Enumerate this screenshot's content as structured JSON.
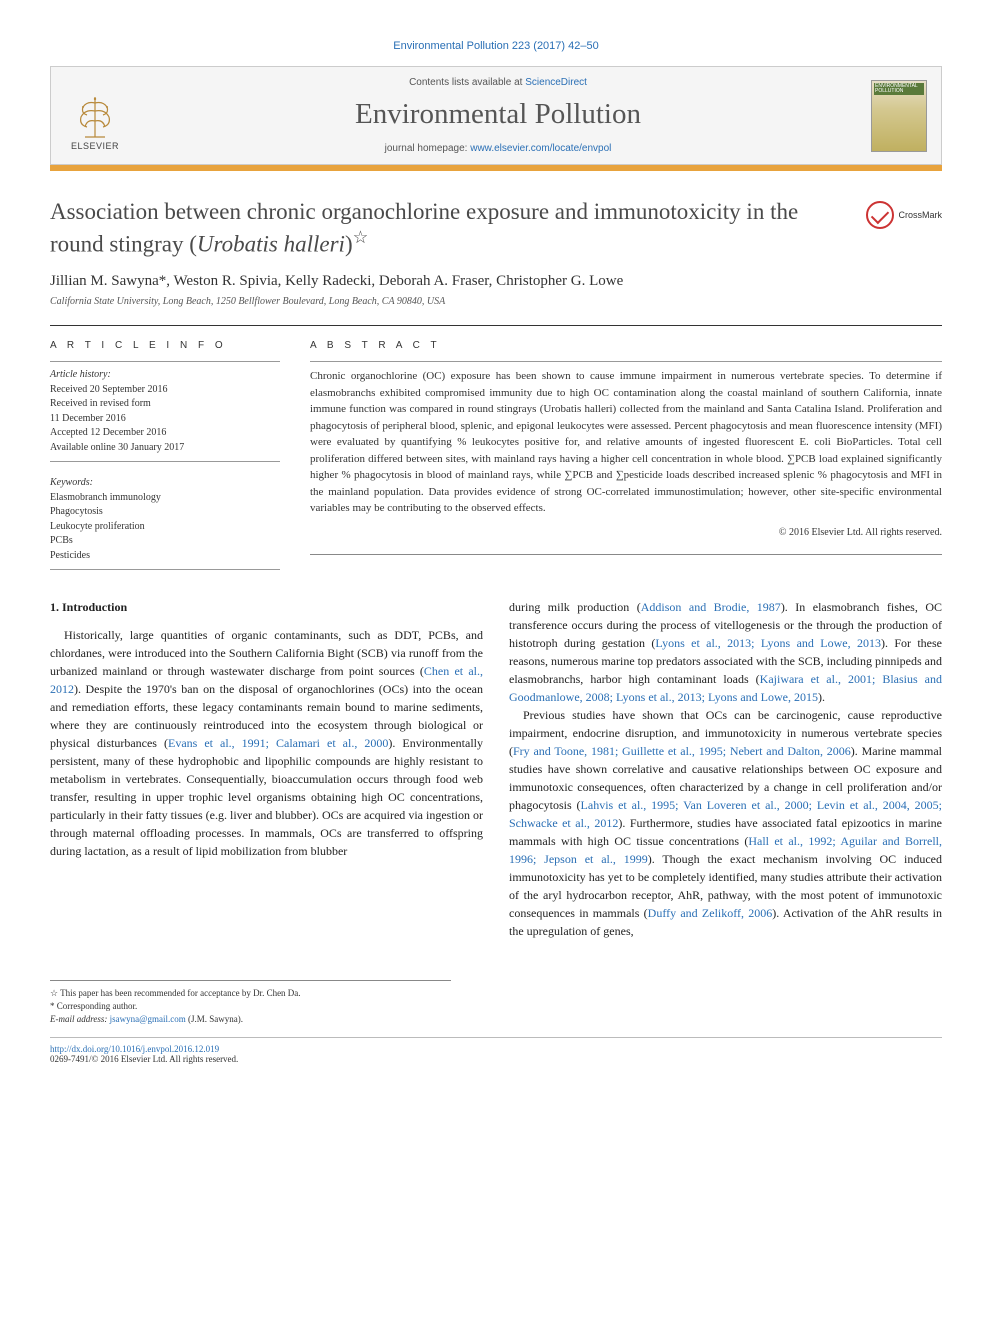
{
  "journal_ref": "Environmental Pollution 223 (2017) 42–50",
  "header": {
    "contents_prefix": "Contents lists available at ",
    "contents_link": "ScienceDirect",
    "journal_name": "Environmental Pollution",
    "homepage_prefix": "journal homepage: ",
    "homepage_link": "www.elsevier.com/locate/envpol",
    "elsevier": "ELSEVIER",
    "cover_label": "ENVIRONMENTAL POLLUTION"
  },
  "crossmark": "CrossMark",
  "title_html": "Association between chronic organochlorine exposure and immunotoxicity in the round stingray (<em>Urobatis halleri</em>)",
  "star": "☆",
  "authors": "Jillian M. Sawyna*, Weston R. Spivia, Kelly Radecki, Deborah A. Fraser, Christopher G. Lowe",
  "affiliation": "California State University, Long Beach, 1250 Bellflower Boulevard, Long Beach, CA 90840, USA",
  "article_info": {
    "label": "A R T I C L E   I N F O",
    "history_label": "Article history:",
    "received": "Received 20 September 2016",
    "revised1": "Received in revised form",
    "revised2": "11 December 2016",
    "accepted": "Accepted 12 December 2016",
    "online": "Available online 30 January 2017",
    "kw_label": "Keywords:",
    "kw": [
      "Elasmobranch immunology",
      "Phagocytosis",
      "Leukocyte proliferation",
      "PCBs",
      "Pesticides"
    ]
  },
  "abstract": {
    "label": "A B S T R A C T",
    "text": "Chronic organochlorine (OC) exposure has been shown to cause immune impairment in numerous vertebrate species. To determine if elasmobranchs exhibited compromised immunity due to high OC contamination along the coastal mainland of southern California, innate immune function was compared in round stingrays (Urobatis halleri) collected from the mainland and Santa Catalina Island. Proliferation and phagocytosis of peripheral blood, splenic, and epigonal leukocytes were assessed. Percent phagocytosis and mean fluorescence intensity (MFI) were evaluated by quantifying % leukocytes positive for, and relative amounts of ingested fluorescent E. coli BioParticles. Total cell proliferation differed between sites, with mainland rays having a higher cell concentration in whole blood. ∑PCB load explained significantly higher % phagocytosis in blood of mainland rays, while ∑PCB and ∑pesticide loads described increased splenic % phagocytosis and MFI in the mainland population. Data provides evidence of strong OC-correlated immunostimulation; however, other site-specific environmental variables may be contributing to the observed effects.",
    "copyright": "© 2016 Elsevier Ltd. All rights reserved."
  },
  "intro": {
    "heading": "1. Introduction",
    "p1a": "Historically, large quantities of organic contaminants, such as DDT, PCBs, and chlordanes, were introduced into the Southern California Bight (SCB) via runoff from the urbanized mainland or through wastewater discharge from point sources (",
    "c1": "Chen et al., 2012",
    "p1b": "). Despite the 1970's ban on the disposal of organochlorines (OCs) into the ocean and remediation efforts, these legacy contaminants remain bound to marine sediments, where they are continuously reintroduced into the ecosystem through biological or physical disturbances (",
    "c2": "Evans et al., 1991; Calamari et al., 2000",
    "p1c": "). Environmentally persistent, many of these hydrophobic and lipophilic compounds are highly resistant to metabolism in vertebrates. Consequentially, bioaccumulation occurs through food web transfer, resulting in upper trophic level organisms obtaining high OC concentrations, particularly in their fatty tissues (e.g. liver and blubber). OCs are acquired via ingestion or through maternal offloading processes. In mammals, OCs are transferred to offspring during lactation, as a result of lipid mobilization from blubber",
    "p2a": "during milk production (",
    "c3": "Addison and Brodie, 1987",
    "p2b": "). In elasmobranch fishes, OC transference occurs during the process of vitellogenesis or the through the production of histotroph during gestation (",
    "c4": "Lyons et al., 2013; Lyons and Lowe, 2013",
    "p2c": "). For these reasons, numerous marine top predators associated with the SCB, including pinnipeds and elasmobranchs, harbor high contaminant loads (",
    "c5": "Kajiwara et al., 2001; Blasius and Goodmanlowe, 2008; Lyons et al., 2013; Lyons and Lowe, 2015",
    "p2d": ").",
    "p3a": "Previous studies have shown that OCs can be carcinogenic, cause reproductive impairment, endocrine disruption, and immunotoxicity in numerous vertebrate species (",
    "c6": "Fry and Toone, 1981; Guillette et al., 1995; Nebert and Dalton, 2006",
    "p3b": "). Marine mammal studies have shown correlative and causative relationships between OC exposure and immunotoxic consequences, often characterized by a change in cell proliferation and/or phagocytosis (",
    "c7": "Lahvis et al., 1995; Van Loveren et al., 2000; Levin et al., 2004, 2005; Schwacke et al., 2012",
    "p3c": "). Furthermore, studies have associated fatal epizootics in marine mammals with high OC tissue concentrations (",
    "c8": "Hall et al., 1992; Aguilar and Borrell, 1996; Jepson et al., 1999",
    "p3d": "). Though the exact mechanism involving OC induced immunotoxicity has yet to be completely identified, many studies attribute their activation of the aryl hydrocarbon receptor, AhR, pathway, with the most potent of immunotoxic consequences in mammals (",
    "c9": "Duffy and Zelikoff, 2006",
    "p3e": "). Activation of the AhR results in the upregulation of genes,"
  },
  "footnotes": {
    "f1": "☆ This paper has been recommended for acceptance by Dr. Chen Da.",
    "f2": "* Corresponding author.",
    "email_label": "E-mail address: ",
    "email": "jsawyna@gmail.com",
    "email_suffix": " (J.M. Sawyna)."
  },
  "footer": {
    "doi": "http://dx.doi.org/10.1016/j.envpol.2016.12.019",
    "issn": "0269-7491/© 2016 Elsevier Ltd. All rights reserved."
  },
  "colors": {
    "link": "#2a6fb5",
    "orange": "#e8a33d",
    "text": "#333333"
  }
}
